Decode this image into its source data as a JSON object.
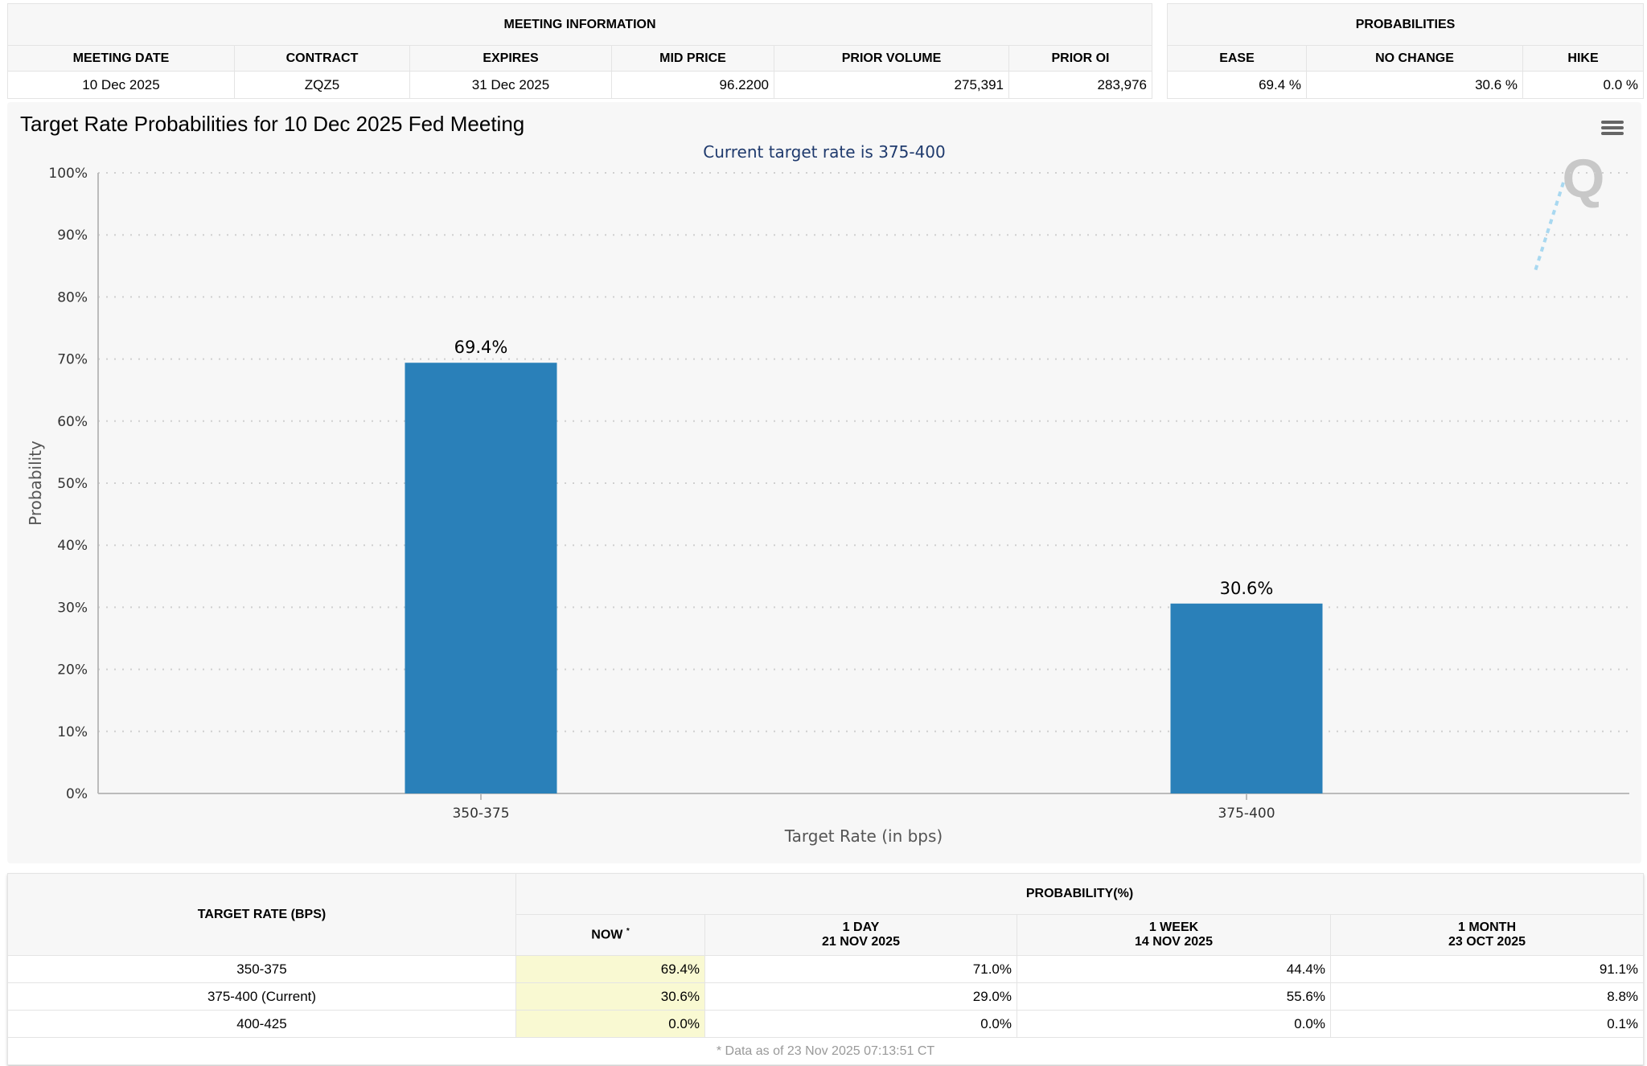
{
  "meeting": {
    "title": "MEETING INFORMATION",
    "headers": [
      "MEETING DATE",
      "CONTRACT",
      "EXPIRES",
      "MID PRICE",
      "PRIOR VOLUME",
      "PRIOR OI"
    ],
    "values": [
      "10 Dec 2025",
      "ZQZ5",
      "31 Dec 2025",
      "96.2200",
      "275,391",
      "283,976"
    ]
  },
  "probabilities": {
    "title": "PROBABILITIES",
    "headers": [
      "EASE",
      "NO CHANGE",
      "HIKE"
    ],
    "values": [
      "69.4 %",
      "30.6 %",
      "0.0 %"
    ]
  },
  "chart": {
    "menu_icon": "hamburger-icon",
    "watermark": "Q"
  },
  "chart_data": {
    "type": "bar",
    "title": "Target Rate Probabilities for 10 Dec 2025 Fed Meeting",
    "subtitle": "Current target rate is 375-400",
    "categories": [
      "350-375",
      "375-400"
    ],
    "values": [
      69.4,
      30.6
    ],
    "data_labels": [
      "69.4%",
      "30.6%"
    ],
    "xlabel": "Target Rate (in bps)",
    "ylabel": "Probability",
    "ylim": [
      0,
      100
    ],
    "yticks": [
      "0%",
      "10%",
      "20%",
      "30%",
      "40%",
      "50%",
      "60%",
      "70%",
      "80%",
      "90%",
      "100%"
    ],
    "grid": true,
    "color": "#2a80b9"
  },
  "bottom": {
    "rate_header": "TARGET RATE (BPS)",
    "group_header": "PROBABILITY(%)",
    "now": "NOW",
    "now_mark": "*",
    "cols": [
      {
        "l1": "1 DAY",
        "l2": "21 NOV 2025"
      },
      {
        "l1": "1 WEEK",
        "l2": "14 NOV 2025"
      },
      {
        "l1": "1 MONTH",
        "l2": "23 OCT 2025"
      }
    ],
    "rows": [
      {
        "rate": "350-375",
        "now": "69.4%",
        "d": "71.0%",
        "w": "44.4%",
        "m": "91.1%"
      },
      {
        "rate": "375-400 (Current)",
        "now": "30.6%",
        "d": "29.0%",
        "w": "55.6%",
        "m": "8.8%"
      },
      {
        "rate": "400-425",
        "now": "0.0%",
        "d": "0.0%",
        "w": "0.0%",
        "m": "0.1%"
      }
    ],
    "footnote": "* Data as of 23 Nov 2025 07:13:51 CT"
  }
}
